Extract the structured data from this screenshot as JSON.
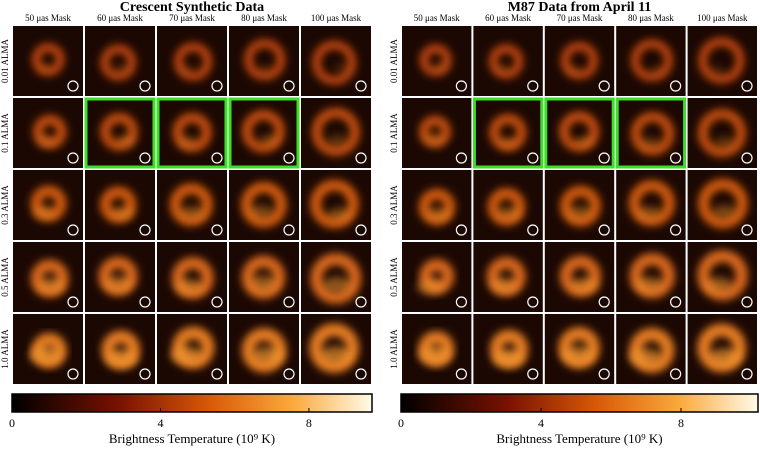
{
  "panels": [
    {
      "title": "Crescent Synthetic Data",
      "columns": [
        "50 μas Mask",
        "60 μas Mask",
        "70 μas Mask",
        "80 μas Mask",
        "100 μas Mask"
      ],
      "rows": [
        "0.01 ALMA",
        "0.1 ALMA",
        "0.3 ALMA",
        "0.5 ALMA",
        "1.0 ALMA"
      ],
      "highlighted": [
        [
          1,
          1
        ],
        [
          1,
          2
        ],
        [
          1,
          3
        ]
      ],
      "colorbar": {
        "label": "Brightness Temperature (10⁹ K)",
        "lim": [
          0,
          9.7
        ],
        "ticks": [
          0,
          4,
          8
        ]
      }
    },
    {
      "title": "M87 Data from April 11",
      "columns": [
        "50 μas Mask",
        "60 μas Mask",
        "70 μas Mask",
        "80 μas Mask",
        "100 μas Mask"
      ],
      "rows": [
        "0.01 ALMA",
        "0.1 ALMA",
        "0.3 ALMA",
        "0.5 ALMA",
        "1.0 ALMA"
      ],
      "highlighted": [
        [
          1,
          1
        ],
        [
          1,
          2
        ],
        [
          1,
          3
        ]
      ],
      "colorbar": {
        "label": "Brightness Temperature (10⁹ K)",
        "lim": [
          0,
          10.2
        ],
        "ticks": [
          0,
          4,
          8
        ]
      }
    }
  ]
}
